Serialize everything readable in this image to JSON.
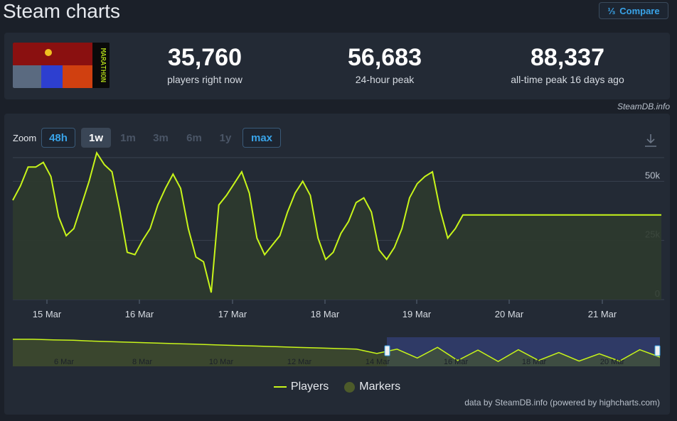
{
  "title": "Steam charts",
  "compare_label": "Compare",
  "compare_icon": "fraction-icon",
  "stats": [
    {
      "value": "35,760",
      "label": "players right now"
    },
    {
      "value": "56,683",
      "label": "24-hour peak"
    },
    {
      "value": "88,337",
      "label": "all-time peak 16 days ago"
    }
  ],
  "credit_top": "SteamDB.info",
  "zoom": {
    "label": "Zoom",
    "buttons": [
      {
        "label": "48h",
        "state": "active-blue"
      },
      {
        "label": "1w",
        "state": "active-gray"
      },
      {
        "label": "1m",
        "state": "disabled"
      },
      {
        "label": "3m",
        "state": "disabled"
      },
      {
        "label": "6m",
        "state": "disabled"
      },
      {
        "label": "1y",
        "state": "disabled"
      },
      {
        "label": "max",
        "state": "active-blue"
      }
    ]
  },
  "legend": {
    "players": "Players",
    "markers": "Markers"
  },
  "credit_bottom": "data by SteamDB.info (powered by highcharts.com)",
  "colors": {
    "line": "#c8f51a",
    "area": "#2e3a2e",
    "navigator_selected": "#2f3a66",
    "grid": "#39424f"
  },
  "chart_data": {
    "type": "line",
    "series": [
      {
        "name": "Players",
        "x": [
          "2025-03-14 14:00",
          "2025-03-14 16:00",
          "2025-03-14 18:00",
          "2025-03-14 20:00",
          "2025-03-14 22:00",
          "2025-03-15 00:00",
          "2025-03-15 02:00",
          "2025-03-15 04:00",
          "2025-03-15 06:00",
          "2025-03-15 08:00",
          "2025-03-15 10:00",
          "2025-03-15 12:00",
          "2025-03-15 14:00",
          "2025-03-15 16:00",
          "2025-03-15 18:00",
          "2025-03-15 20:00",
          "2025-03-15 22:00",
          "2025-03-16 00:00",
          "2025-03-16 02:00",
          "2025-03-16 04:00",
          "2025-03-16 06:00",
          "2025-03-16 08:00",
          "2025-03-16 10:00",
          "2025-03-16 12:00",
          "2025-03-16 14:00",
          "2025-03-16 16:00",
          "2025-03-16 18:00",
          "2025-03-16 20:00",
          "2025-03-16 22:00",
          "2025-03-17 00:00",
          "2025-03-17 02:00",
          "2025-03-17 04:00",
          "2025-03-17 06:00",
          "2025-03-17 08:00",
          "2025-03-17 10:00",
          "2025-03-17 12:00",
          "2025-03-17 14:00",
          "2025-03-17 16:00",
          "2025-03-17 18:00",
          "2025-03-17 20:00",
          "2025-03-17 22:00",
          "2025-03-18 00:00",
          "2025-03-18 02:00",
          "2025-03-18 04:00",
          "2025-03-18 06:00",
          "2025-03-18 08:00",
          "2025-03-18 10:00",
          "2025-03-18 12:00",
          "2025-03-18 14:00",
          "2025-03-18 16:00",
          "2025-03-18 18:00",
          "2025-03-18 20:00",
          "2025-03-18 22:00",
          "2025-03-19 00:00",
          "2025-03-19 02:00",
          "2025-03-19 04:00",
          "2025-03-19 06:00",
          "2025-03-19 08:00",
          "2025-03-19 10:00",
          "2025-03-19 12:00",
          "2025-03-19 14:00",
          "2025-03-19 16:00",
          "2025-03-19 18:00",
          "2025-03-19 20:00",
          "2025-03-19 22:00",
          "2025-03-20 00:00",
          "2025-03-20 02:00",
          "2025-03-20 04:00",
          "2025-03-20 06:00",
          "2025-03-20 08:00",
          "2025-03-20 10:00",
          "2025-03-20 12:00",
          "2025-03-20 14:00",
          "2025-03-20 16:00",
          "2025-03-20 18:00",
          "2025-03-20 20:00",
          "2025-03-20 22:00",
          "2025-03-21 00:00",
          "2025-03-21 02:00",
          "2025-03-21 04:00",
          "2025-03-21 06:00",
          "2025-03-21 08:00",
          "2025-03-21 10:00",
          "2025-03-21 12:00",
          "2025-03-21 14:00",
          "2025-03-21 16:00",
          "2025-03-21 18:00"
        ],
        "values": [
          42000,
          48000,
          56000,
          56000,
          58000,
          52000,
          35000,
          27000,
          30000,
          40000,
          50000,
          62000,
          57000,
          54000,
          38000,
          20000,
          19000,
          25000,
          30000,
          40000,
          47000,
          53000,
          47000,
          30000,
          18000,
          16000,
          3000,
          40000,
          44000,
          49000,
          54000,
          45000,
          26000,
          19000,
          23000,
          27000,
          37000,
          45000,
          50000,
          44000,
          26000,
          17000,
          20000,
          28000,
          33000,
          41000,
          43000,
          37000,
          21000,
          17000,
          22000,
          30000,
          43000,
          49000,
          52000,
          54000,
          38000,
          26000,
          30000,
          35760,
          35760,
          35760,
          35760,
          35760,
          35760,
          35760,
          35760,
          35760,
          35760,
          35760,
          35760,
          35760,
          35760,
          35760,
          35760,
          35760,
          35760,
          35760,
          35760,
          35760,
          35760,
          35760,
          35760,
          35760,
          35760,
          35760,
          35760
        ]
      },
      {
        "name": "Markers",
        "values": []
      }
    ],
    "x_ticks": [
      "15 Mar",
      "16 Mar",
      "17 Mar",
      "18 Mar",
      "19 Mar",
      "20 Mar",
      "21 Mar"
    ],
    "y_ticks": [
      "0",
      "25k",
      "50k"
    ],
    "ylim": [
      0,
      60000
    ],
    "grid": true,
    "legend_position": "bottom",
    "navigator": {
      "x_ticks": [
        "6 Mar",
        "8 Mar",
        "10 Mar",
        "12 Mar",
        "14 Mar",
        "16 Mar",
        "18 Mar",
        "20 Mar"
      ],
      "values": [
        88000,
        88000,
        86000,
        85000,
        82000,
        80000,
        78000,
        76000,
        74000,
        72000,
        70000,
        68000,
        66000,
        64000,
        62000,
        60000,
        58000,
        56000,
        42000,
        56000,
        27000,
        62000,
        19000,
        53000,
        16000,
        54000,
        19000,
        45000,
        17000,
        41000,
        17000,
        54000,
        30000
      ],
      "selected_range": [
        "14 Mar",
        "21 Mar"
      ]
    }
  }
}
